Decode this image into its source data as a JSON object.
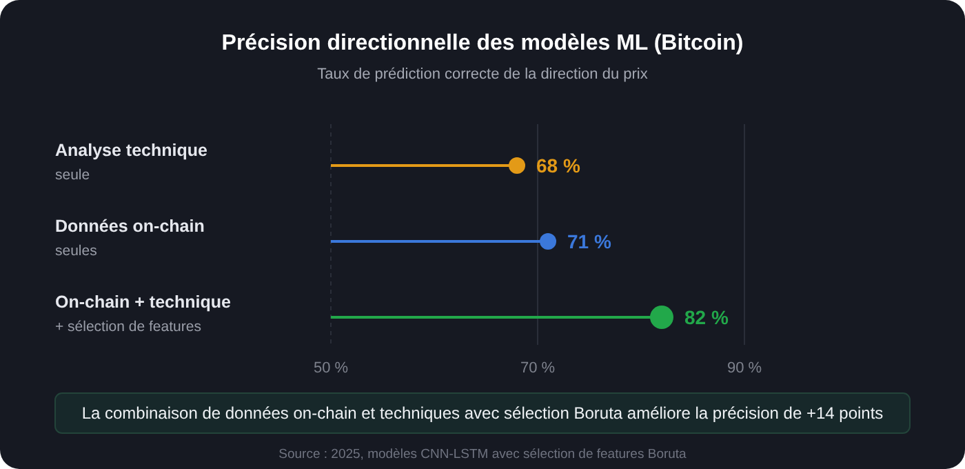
{
  "chart_data": {
    "type": "lollipop",
    "orientation": "horizontal",
    "title": "Précision directionnelle des modèles ML (Bitcoin)",
    "subtitle": "Taux de prédiction correcte de la direction du prix",
    "categories": [
      "Analyse technique\nseule",
      "Données on-chain\nseules",
      "On-chain + technique\n+ sélection de features"
    ],
    "values": [
      68,
      71,
      82
    ],
    "colors": [
      "#e39a17",
      "#3b78db",
      "#22a84a"
    ],
    "value_labels": [
      "68 %",
      "71 %",
      "82 %"
    ],
    "xlim": [
      50,
      90
    ],
    "xticks": [
      {
        "value": 50,
        "label": "50 %"
      },
      {
        "value": 70,
        "label": "70 %"
      },
      {
        "value": 90,
        "label": "90 %"
      }
    ],
    "sizes": [
      0.5,
      0.5,
      1
    ],
    "grid": "x",
    "marker": "circle",
    "annotations": [
      "La combinaison de données on-chain et techniques avec sélection Boruta améliore la précision de +14 points",
      "Source : 2025, modèles CNN-LSTM avec sélection de features Boruta"
    ]
  }
}
